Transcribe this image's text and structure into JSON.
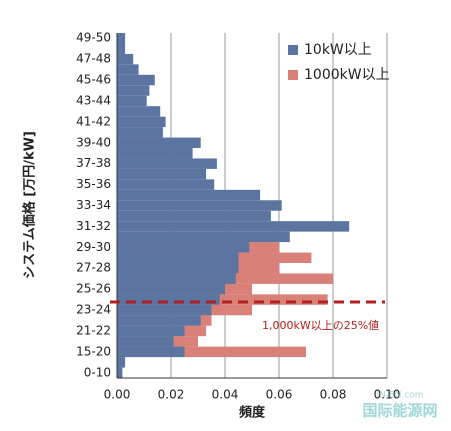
{
  "chart_data": {
    "type": "hbar-overlap",
    "xlabel": "頻度",
    "ylabel": "システム価格 [万円/kW]",
    "categories": [
      "49-50",
      null,
      "47-48",
      null,
      "45-46",
      null,
      "43-44",
      null,
      "41-42",
      null,
      "39-40",
      null,
      "37-38",
      null,
      "35-36",
      null,
      "33-34",
      null,
      "31-32",
      null,
      "29-30",
      null,
      "27-28",
      null,
      "25-26",
      null,
      "23-24",
      null,
      "21-22",
      null,
      "15-20",
      null,
      "0-10"
    ],
    "series": [
      {
        "name": "1000kW以上",
        "color": "#d98078",
        "values": [
          0,
          0,
          0,
          0,
          0,
          0,
          0,
          0,
          0,
          0,
          0,
          0,
          0,
          0,
          0,
          0,
          0,
          0,
          0,
          0,
          0.06,
          0.072,
          0.06,
          0.08,
          0.05,
          0.078,
          0.05,
          0.035,
          0.033,
          0.03,
          0.07,
          0,
          0
        ]
      },
      {
        "name": "10kW以上",
        "color": "#5b75a0",
        "values": [
          0.003,
          0.003,
          0.006,
          0.008,
          0.014,
          0.012,
          0.011,
          0.016,
          0.018,
          0.017,
          0.031,
          0.028,
          0.037,
          0.033,
          0.036,
          0.053,
          0.061,
          0.057,
          0.086,
          0.064,
          0.049,
          0.045,
          0.045,
          0.044,
          0.04,
          0.038,
          0.035,
          0.031,
          0.025,
          0.021,
          0.025,
          0.003,
          0.002
        ]
      }
    ],
    "legend_order": [
      1,
      0
    ],
    "xlim": [
      0,
      0.1
    ],
    "xticks": [
      {
        "value": 0,
        "label": "0.00"
      },
      {
        "value": 0.02,
        "label": "0.02"
      },
      {
        "value": 0.04,
        "label": "0.04"
      },
      {
        "value": 0.06,
        "label": "0.06"
      },
      {
        "value": 0.08,
        "label": "0.08"
      },
      {
        "value": 0.1,
        "label": "0.10"
      }
    ],
    "grid": true,
    "annotation": "1,000kW以上の25%値",
    "annotation_color": "#b02020",
    "watermark": [
      "IN-EN.com",
      "国际能源网"
    ]
  }
}
